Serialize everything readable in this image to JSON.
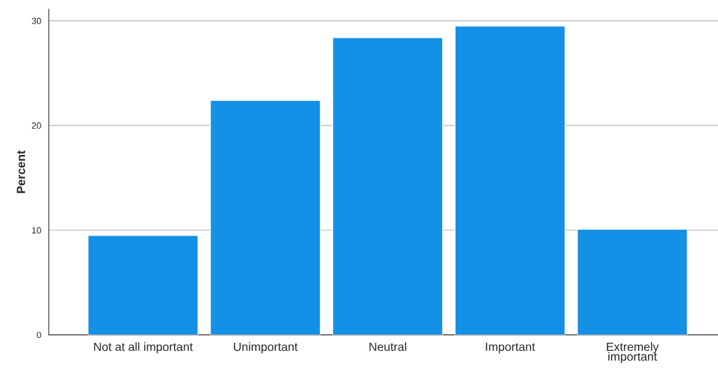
{
  "chart_data": {
    "type": "bar",
    "ylabel": "Percent",
    "categories": [
      "Not at all important",
      "Unimportant",
      "Neutral",
      "Important",
      "Extremely\nimportant"
    ],
    "values": [
      9.5,
      22.4,
      28.4,
      29.5,
      10.1
    ],
    "color": "#1490e6",
    "ylim": [
      0,
      31.1
    ],
    "yticks": [
      0,
      10,
      20,
      30
    ],
    "grid": "y"
  }
}
